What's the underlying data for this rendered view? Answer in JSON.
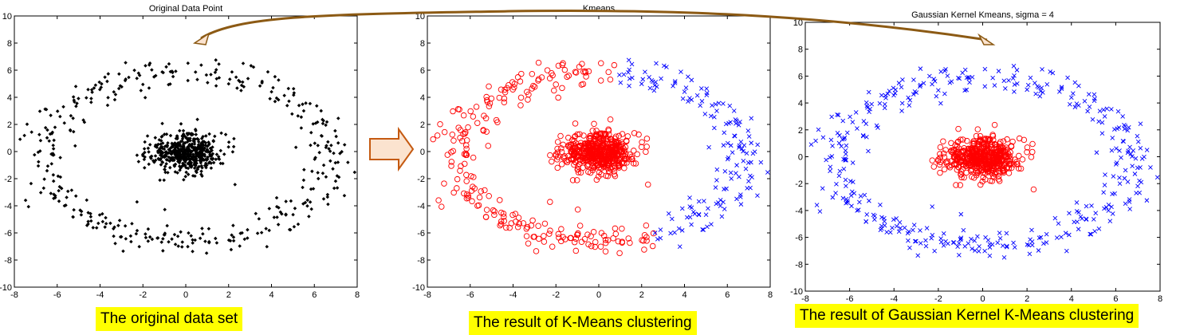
{
  "colors": {
    "original_marker": "#000000",
    "cluster_a": "#ff0000",
    "cluster_b": "#0000ff",
    "arrow_fill": "#fbe3cf",
    "arrow_stroke": "#c55a11",
    "curve_stroke": "#8c5a14",
    "caption_bg": "#ffff00"
  },
  "chart_data": [
    {
      "type": "scatter",
      "title": "Original Data Point",
      "xlim": [
        -8,
        8
      ],
      "ylim": [
        -10,
        10
      ],
      "xticks": [
        "-8",
        "-6",
        "-4",
        "-2",
        "0",
        "2",
        "4",
        "6",
        "8"
      ],
      "yticks": [
        "-10",
        "-8",
        "-6",
        "-4",
        "-2",
        "0",
        "2",
        "4",
        "6",
        "8",
        "10"
      ],
      "grid": false,
      "series": [
        {
          "marker": "dot",
          "color": "#000000",
          "groups": [
            {
              "shape": "ring",
              "cx": 0,
              "cy": -0.3,
              "rx": 6.7,
              "ry": 6.3,
              "spread": 0.55,
              "n": 380
            },
            {
              "shape": "blob",
              "cx": 0,
              "cy": -0.1,
              "sx": 0.85,
              "sy": 0.7,
              "n": 500
            }
          ]
        }
      ]
    },
    {
      "type": "scatter",
      "title": "Kmeans",
      "xlim": [
        -8,
        8
      ],
      "ylim": [
        -10,
        10
      ],
      "xticks": [
        "-8",
        "-6",
        "-4",
        "-2",
        "0",
        "2",
        "4",
        "6",
        "8"
      ],
      "yticks": [
        "-10",
        "-8",
        "-6",
        "-4",
        "-2",
        "0",
        "2",
        "4",
        "6",
        "8",
        "10"
      ],
      "grid": false,
      "series": [
        {
          "marker": "o",
          "color": "#ff0000",
          "groups": [
            {
              "shape": "ring",
              "cx": 0,
              "cy": -0.3,
              "rx": 6.7,
              "ry": 6.3,
              "spread": 0.55,
              "n": 380,
              "rule": "kmeans-left"
            },
            {
              "shape": "blob",
              "cx": 0,
              "cy": -0.1,
              "sx": 0.85,
              "sy": 0.7,
              "n": 500
            }
          ]
        },
        {
          "marker": "x",
          "color": "#0000ff",
          "groups": [
            {
              "shape": "ring",
              "cx": 0,
              "cy": -0.3,
              "rx": 6.7,
              "ry": 6.3,
              "spread": 0.55,
              "n": 380,
              "rule": "kmeans-right"
            }
          ]
        }
      ]
    },
    {
      "type": "scatter",
      "title": "Gaussian Kernel Kmeans, sigma = 4",
      "xlim": [
        -8,
        8
      ],
      "ylim": [
        -10,
        10
      ],
      "xticks": [
        "-8",
        "-6",
        "-4",
        "-2",
        "0",
        "2",
        "4",
        "6",
        "8"
      ],
      "yticks": [
        "-10",
        "-8",
        "-6",
        "-4",
        "-2",
        "0",
        "2",
        "4",
        "6",
        "8",
        "10"
      ],
      "grid": false,
      "series": [
        {
          "marker": "x",
          "color": "#0000ff",
          "groups": [
            {
              "shape": "ring",
              "cx": 0,
              "cy": -0.3,
              "rx": 6.7,
              "ry": 6.3,
              "spread": 0.55,
              "n": 380
            }
          ]
        },
        {
          "marker": "o",
          "color": "#ff0000",
          "groups": [
            {
              "shape": "blob",
              "cx": 0,
              "cy": -0.1,
              "sx": 0.85,
              "sy": 0.7,
              "n": 500
            }
          ]
        }
      ]
    }
  ],
  "captions": [
    "The original data set",
    "The result of K-Means clustering",
    "The result of Gaussian Kernel K-Means clustering"
  ]
}
